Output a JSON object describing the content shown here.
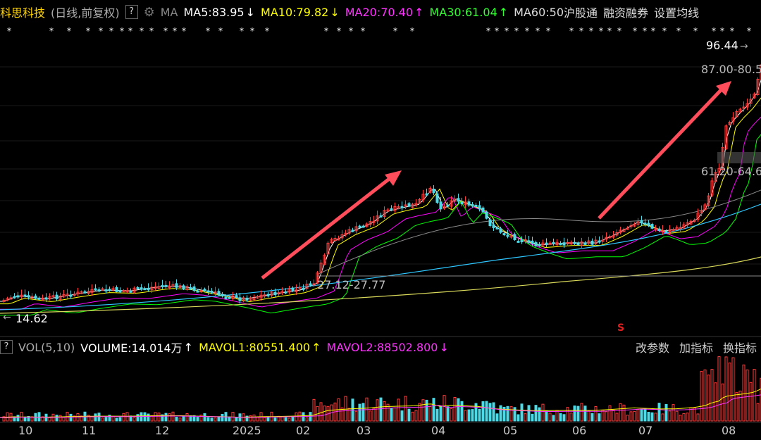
{
  "header": {
    "stock_name": "科思科技",
    "mode": "(日线,前复权)",
    "help": "?",
    "indicator": "MA",
    "ma5": "MA5:83.95",
    "ma10": "MA10:79.82",
    "ma20": "MA20:70.40",
    "ma30": "MA30:61.04",
    "ma60": "MA60:50",
    "link1": "沪股通",
    "link2": "融资融券",
    "link3": "设置均线",
    "colors": {
      "ma5": "#ffffff",
      "ma10": "#ffff00",
      "ma20": "#ff00ff",
      "ma30": "#00ff00",
      "ma60": "#dddddd"
    }
  },
  "price_labels": {
    "high": "96.44",
    "zone_top": "87.00-80.5",
    "zone_mid": "61.20-64.6",
    "zone_low": "27.12-27.77",
    "low": "14.62"
  },
  "volume": {
    "help": "?",
    "name": "VOL(5,10)",
    "volume": "VOLUME:14.014万",
    "mavol1": "MAVOL1:80551.400",
    "mavol2": "MAVOL2:88502.800",
    "btn_params": "改参数",
    "btn_add": "加指标",
    "btn_switch": "换指标"
  },
  "xaxis": {
    "labels": [
      "10",
      "11",
      "12",
      "2025",
      "02",
      "03",
      "04",
      "05",
      "06",
      "07",
      "08"
    ]
  },
  "marker": "S",
  "chart_data": {
    "type": "line",
    "x": [
      "10",
      "11",
      "12",
      "2025",
      "02",
      "03",
      "04",
      "05",
      "06",
      "07",
      "08"
    ],
    "series": [
      {
        "values": [
          16,
          18,
          21,
          20,
          24,
          50,
          58,
          40,
          36,
          44,
          92
        ]
      }
    ],
    "ylim": [
      14.62,
      96.44
    ]
  }
}
